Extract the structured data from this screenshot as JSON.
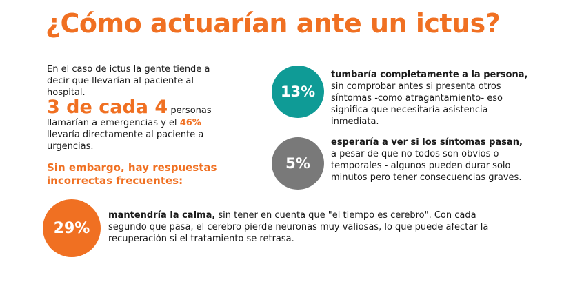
{
  "title": "¿Cómo actuarían ante un ictus?",
  "intro": "En el caso de ictus la gente tiende a decir que llevarían al paciente al hospital.",
  "stat": {
    "highlight": "3 de cada 4",
    "text1": " personas llamarían a emergencias y el ",
    "highlight2": "46%",
    "text2": " llevaría directamente al paciente a urgencias."
  },
  "subheading": "Sin embargo, hay respuestas incorrectas frecuentes:",
  "items": [
    {
      "percent": "13%",
      "lead": "tumbaría completamente a la persona,",
      "text": "sin comprobar antes si presenta otros síntomas -como atragantamiento- eso significa que necesitaría asistencia inmediata."
    },
    {
      "percent": "5%",
      "lead": "esperaría a ver si los síntomas pasan,",
      "text": "a pesar de que no todos son obvios o temporales - algunos pueden durar solo minutos pero tener consecuencias graves."
    },
    {
      "percent": "29%",
      "lead": "mantendría la calma,",
      "text": " sin tener en cuenta que \"el tiempo es cerebro\". Con cada segundo que pasa, el cerebro pierde neuronas muy valiosas, lo que puede afectar la recuperación si el tratamiento se retrasa."
    }
  ]
}
